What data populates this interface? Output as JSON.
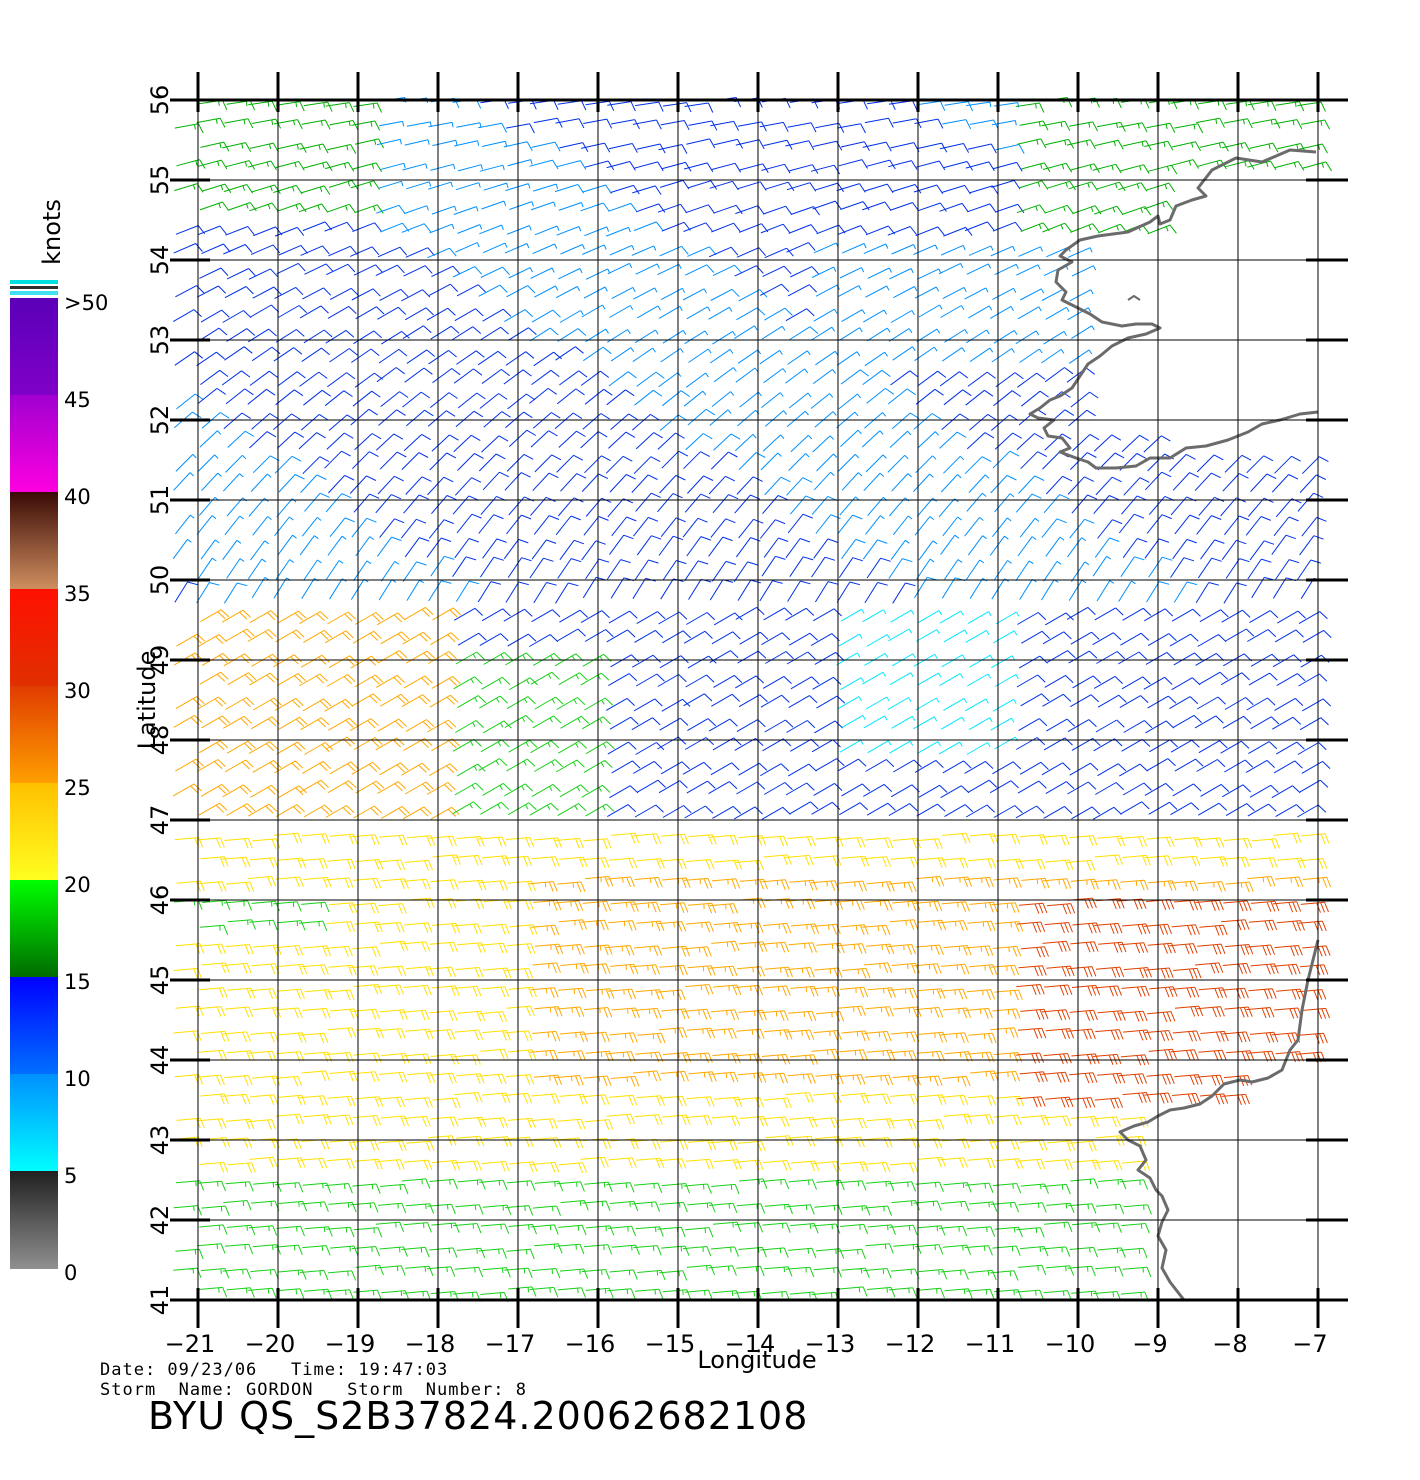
{
  "map": {
    "lon_range": [
      -21,
      -7
    ],
    "lat_range": [
      41,
      56
    ],
    "lon_ticks": [
      "−21",
      "−20",
      "−19",
      "−18",
      "−17",
      "−16",
      "−15",
      "−14",
      "−13",
      "−12",
      "−11",
      "−10",
      "−9",
      "−8",
      "−7"
    ],
    "lat_ticks": [
      "41",
      "42",
      "43",
      "44",
      "45",
      "46",
      "47",
      "48",
      "49",
      "50",
      "51",
      "52",
      "53",
      "54",
      "55",
      "56"
    ],
    "xlabel": "Longitude",
    "ylabel": "Latitude",
    "grid": true,
    "coastline_color": "#6b6b6b",
    "content": "QuikSCAT wind barbs over the NE Atlantic west of Ireland, France and Spain"
  },
  "colorbar": {
    "title": "knots",
    "labels": [
      ">50",
      "45",
      "40",
      "35",
      "30",
      "25",
      "20",
      "15",
      "10",
      "5",
      "0"
    ],
    "bands": [
      {
        "range": "45-50",
        "top": "#5a00b8",
        "bottom": "#8000c8"
      },
      {
        "range": "40-45",
        "top": "#a000d0",
        "bottom": "#ff00e0"
      },
      {
        "range": "35-40",
        "top": "#3a0a05",
        "bottom": "#d09060"
      },
      {
        "range": "30-35",
        "top": "#ff1000",
        "bottom": "#e03000"
      },
      {
        "range": "25-30",
        "top": "#e03c00",
        "bottom": "#ffa000"
      },
      {
        "range": "20-25",
        "top": "#ffc000",
        "bottom": "#ffff20"
      },
      {
        "range": "15-20",
        "top": "#00ff00",
        "bottom": "#006a00"
      },
      {
        "range": "10-15",
        "top": "#0000ff",
        "bottom": "#0070ff"
      },
      {
        "range": "5-10",
        "top": "#0090ff",
        "bottom": "#00ffff"
      },
      {
        "range": "0-5",
        "top": "#202020",
        "bottom": "#909090"
      }
    ]
  },
  "info": {
    "date_line": "Date: 09/23/06   Time: 19:47:03",
    "storm_line": "Storm  Name: GORDON   Storm  Number: 8",
    "product_id": "BYU  QS_S2B37824.20062682108"
  }
}
